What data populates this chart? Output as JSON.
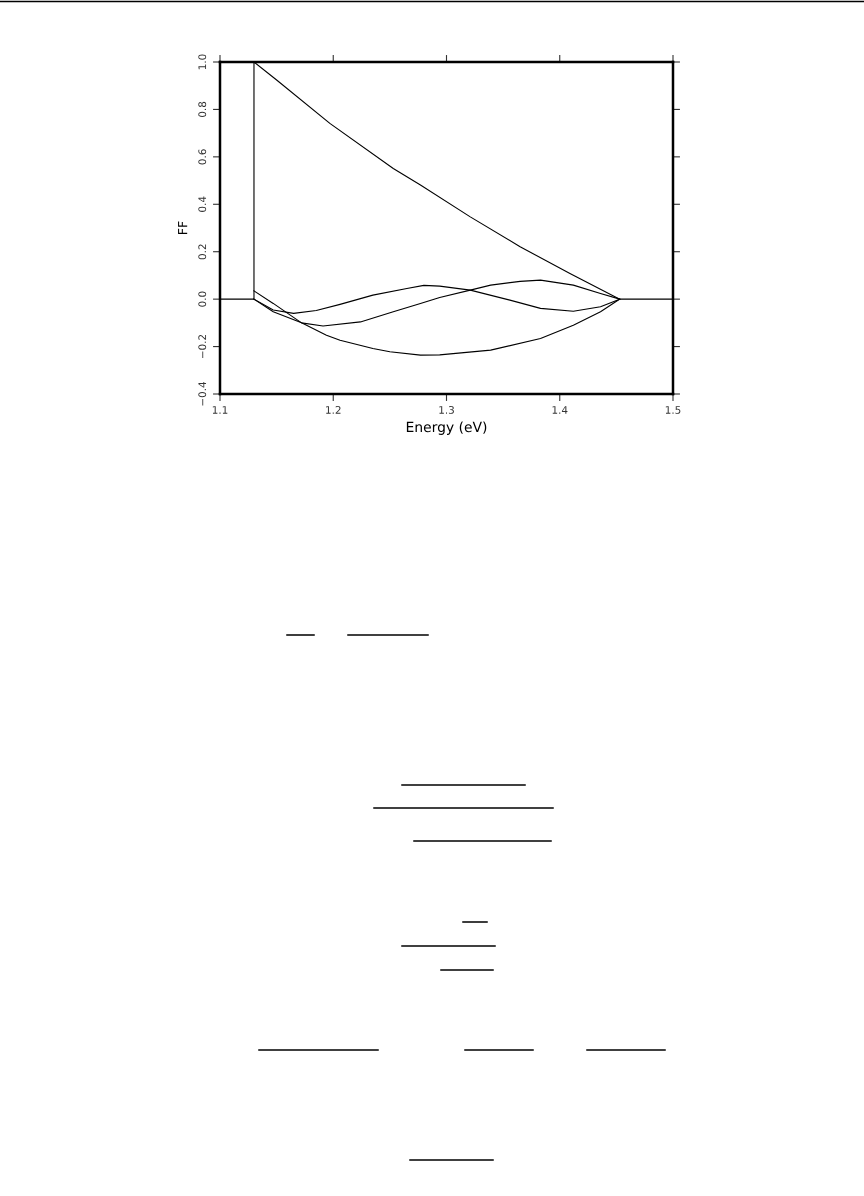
{
  "chart_data": {
    "type": "line",
    "xlabel": "Energy (eV)",
    "ylabel": "FF",
    "xlim": [
      1.1,
      1.5
    ],
    "ylim": [
      -0.4,
      1.0
    ],
    "xticks": [
      1.1,
      1.2,
      1.3,
      1.4,
      1.5
    ],
    "yticks": [
      {
        "value": -0.4,
        "label": "−0.4"
      },
      {
        "value": -0.2,
        "label": "−0.2"
      },
      {
        "value": 0,
        "label": "0.0"
      },
      0.2,
      0.4,
      0.6,
      0.8,
      {
        "value": 1.0,
        "label": "1.0"
      }
    ],
    "series": [
      {
        "color": "#000000",
        "x": [
          1.1,
          1.13,
          1.13,
          1.15,
          1.197,
          1.253,
          1.277,
          1.321,
          1.365,
          1.409,
          1.453
        ],
        "values": [
          0,
          0,
          1.0,
          0.924,
          0.741,
          0.551,
          0.481,
          0.347,
          0.221,
          0.108,
          0
        ]
      },
      {
        "color": "#000000",
        "x": [
          1.13,
          1.147,
          1.172,
          1.194,
          1.206,
          1.235,
          1.25,
          1.277,
          1.294,
          1.339,
          1.383,
          1.412,
          1.436,
          1.453
        ],
        "values": [
          0.035,
          -0.018,
          -0.1,
          -0.152,
          -0.173,
          -0.208,
          -0.222,
          -0.236,
          -0.235,
          -0.215,
          -0.166,
          -0.11,
          -0.053,
          0
        ]
      },
      {
        "color": "#000000",
        "x": [
          1.13,
          1.147,
          1.172,
          1.191,
          1.224,
          1.253,
          1.277,
          1.294,
          1.321,
          1.339,
          1.365,
          1.383,
          1.412,
          1.436,
          1.453,
          1.5
        ],
        "values": [
          0,
          -0.053,
          -0.1,
          -0.113,
          -0.096,
          -0.053,
          -0.018,
          0.007,
          0.038,
          0.059,
          0.075,
          0.08,
          0.059,
          0.024,
          0,
          0
        ]
      },
      {
        "color": "#000000",
        "x": [
          1.13,
          1.147,
          1.165,
          1.185,
          1.206,
          1.235,
          1.265,
          1.28,
          1.294,
          1.321,
          1.356,
          1.383,
          1.412,
          1.436,
          1.453
        ],
        "values": [
          0,
          -0.046,
          -0.06,
          -0.048,
          -0.022,
          0.017,
          0.045,
          0.058,
          0.055,
          0.038,
          -0.004,
          -0.039,
          -0.051,
          -0.032,
          0
        ]
      }
    ]
  }
}
